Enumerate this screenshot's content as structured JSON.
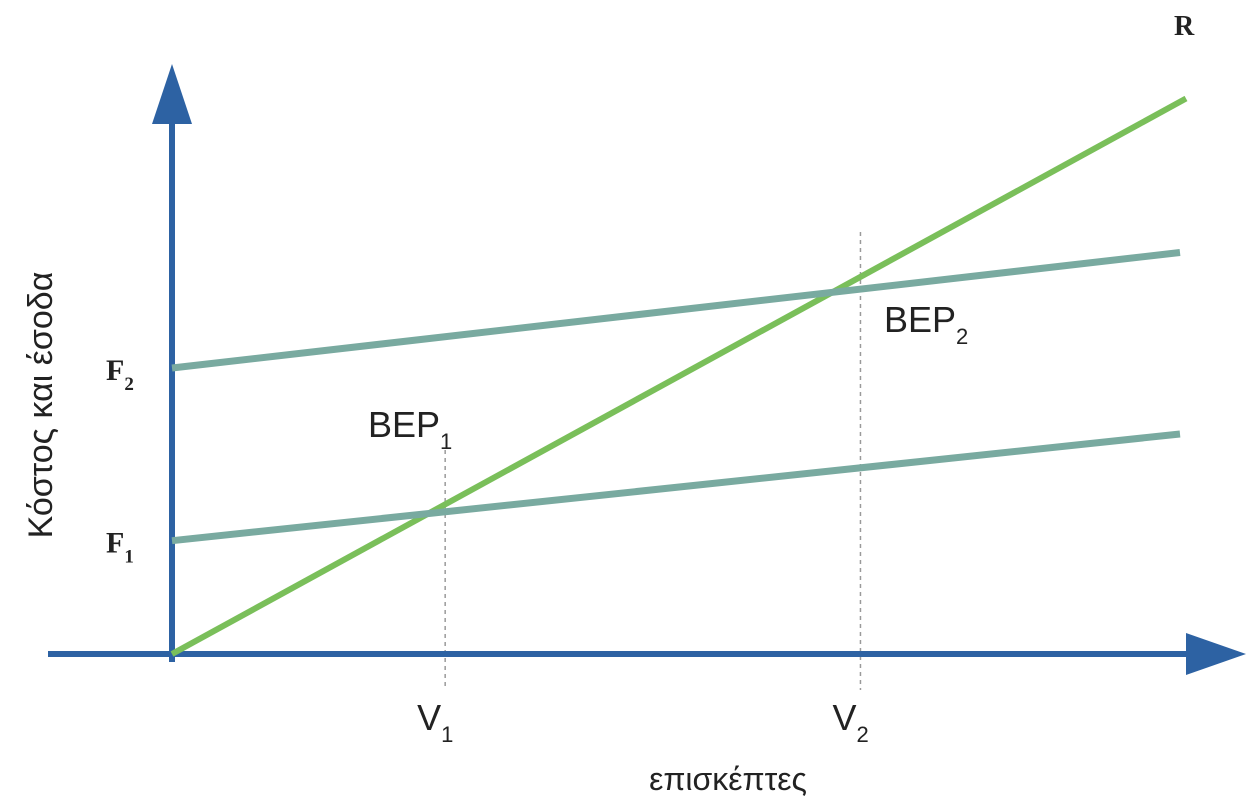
{
  "colors": {
    "axis": "#2d62a3",
    "revenue": "#7abf5a",
    "cost": "#79aaa0",
    "guide": "#9a9a9a"
  },
  "chart_data": {
    "type": "line",
    "xlabel": "επισκέπτες",
    "ylabel": "Κόστος και έσοδα",
    "xlim": [
      0,
      100
    ],
    "ylim": [
      0,
      50
    ],
    "grid": false,
    "series": [
      {
        "key": "revenue",
        "name": "R",
        "x": [
          0,
          100.6
        ],
        "y": [
          0,
          50.5
        ]
      },
      {
        "key": "cost1",
        "name": "",
        "x": [
          0,
          100
        ],
        "y": [
          10.3,
          20.0
        ]
      },
      {
        "key": "cost2",
        "name": "",
        "x": [
          0,
          100
        ],
        "y": [
          26.0,
          36.5
        ]
      }
    ],
    "points": [
      {
        "label": "BEP",
        "sub": "1",
        "x": 27.1,
        "y": 13.6,
        "v_label": "V",
        "v_sub": "1"
      },
      {
        "label": "BEP",
        "sub": "2",
        "x": 68.3,
        "y": 33.2,
        "v_label": "V",
        "v_sub": "2"
      }
    ],
    "y_ticks": [
      {
        "label": "F",
        "sub": "1",
        "y": 10.3
      },
      {
        "label": "F",
        "sub": "2",
        "y": 26.0
      }
    ]
  }
}
